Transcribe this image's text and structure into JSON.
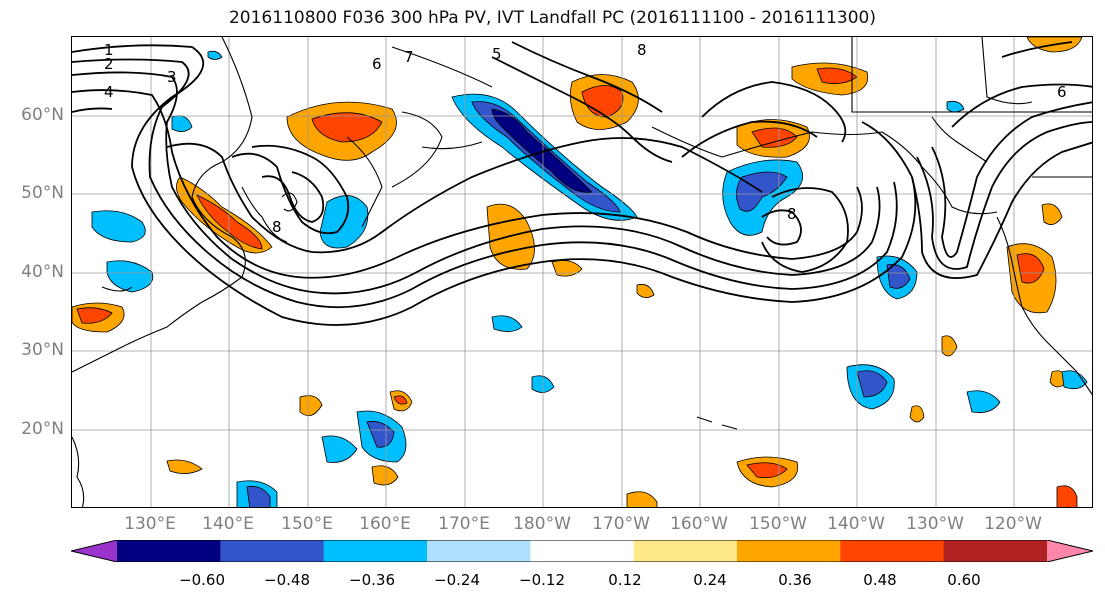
{
  "title": "2016110800 F036 300 hPa PV, IVT Landfall PC (2016111100 - 2016111300)",
  "lat_labels": [
    "60°N",
    "50°N",
    "40°N",
    "30°N",
    "20°N"
  ],
  "lon_labels": [
    "130°E",
    "140°E",
    "150°E",
    "160°E",
    "170°E",
    "180°W",
    "170°W",
    "160°W",
    "150°W",
    "140°W",
    "130°W",
    "120°W"
  ],
  "pv_contour_labels": [
    "1",
    "2",
    "3",
    "4",
    "5",
    "6",
    "7",
    "8"
  ],
  "colorbar": {
    "colors": [
      "#9933cc",
      "#000080",
      "#3355cc",
      "#00bfff",
      "#b0e0ff",
      "#ffffff",
      "#ffe88a",
      "#ffa500",
      "#ff4500",
      "#b22222",
      "#ff88aa"
    ],
    "tick_labels": [
      "−0.60",
      "−0.48",
      "−0.36",
      "−0.24",
      "−0.12",
      "0.12",
      "0.24",
      "0.36",
      "0.48",
      "0.60"
    ]
  },
  "colors": {
    "land_outline": "#000000",
    "gridline": "#9a9a9a",
    "axis_label": "#808080"
  }
}
